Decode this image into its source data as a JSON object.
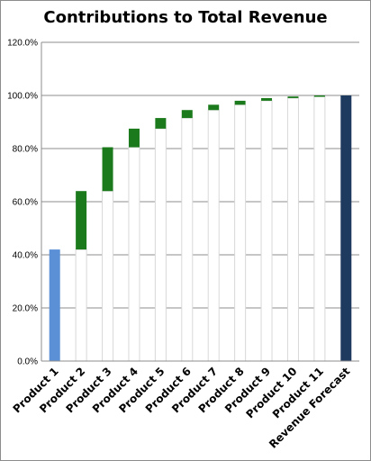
{
  "chart_data": {
    "type": "bar",
    "subtype": "waterfall",
    "title": "Contributions to Total Revenue",
    "xlabel": "",
    "ylabel": "",
    "ylim": [
      0,
      120
    ],
    "y_ticks": [
      "0.0%",
      "20.0%",
      "40.0%",
      "60.0%",
      "80.0%",
      "100.0%",
      "120.0%"
    ],
    "categories": [
      "Product 1",
      "Product 2",
      "Product 3",
      "Product 4",
      "Product 5",
      "Product 6",
      "Product 7",
      "Product 8",
      "Product 9",
      "Product 10",
      "Product 11",
      "Revenue Forecast"
    ],
    "values": [
      42.0,
      22.0,
      16.5,
      7.0,
      4.0,
      3.0,
      2.0,
      1.5,
      1.0,
      0.6,
      0.4,
      100.0
    ],
    "cumulative_start": [
      0,
      42.0,
      64.0,
      80.5,
      87.5,
      91.5,
      94.5,
      96.5,
      98.0,
      99.0,
      99.6,
      0
    ],
    "grid": true,
    "legend": "none",
    "colors": {
      "first": "#5b8fd6",
      "step": "#1b7a1b",
      "total": "#1f3a5f",
      "connector": "#d8d8d8",
      "grid": "#8c8c8c"
    }
  }
}
